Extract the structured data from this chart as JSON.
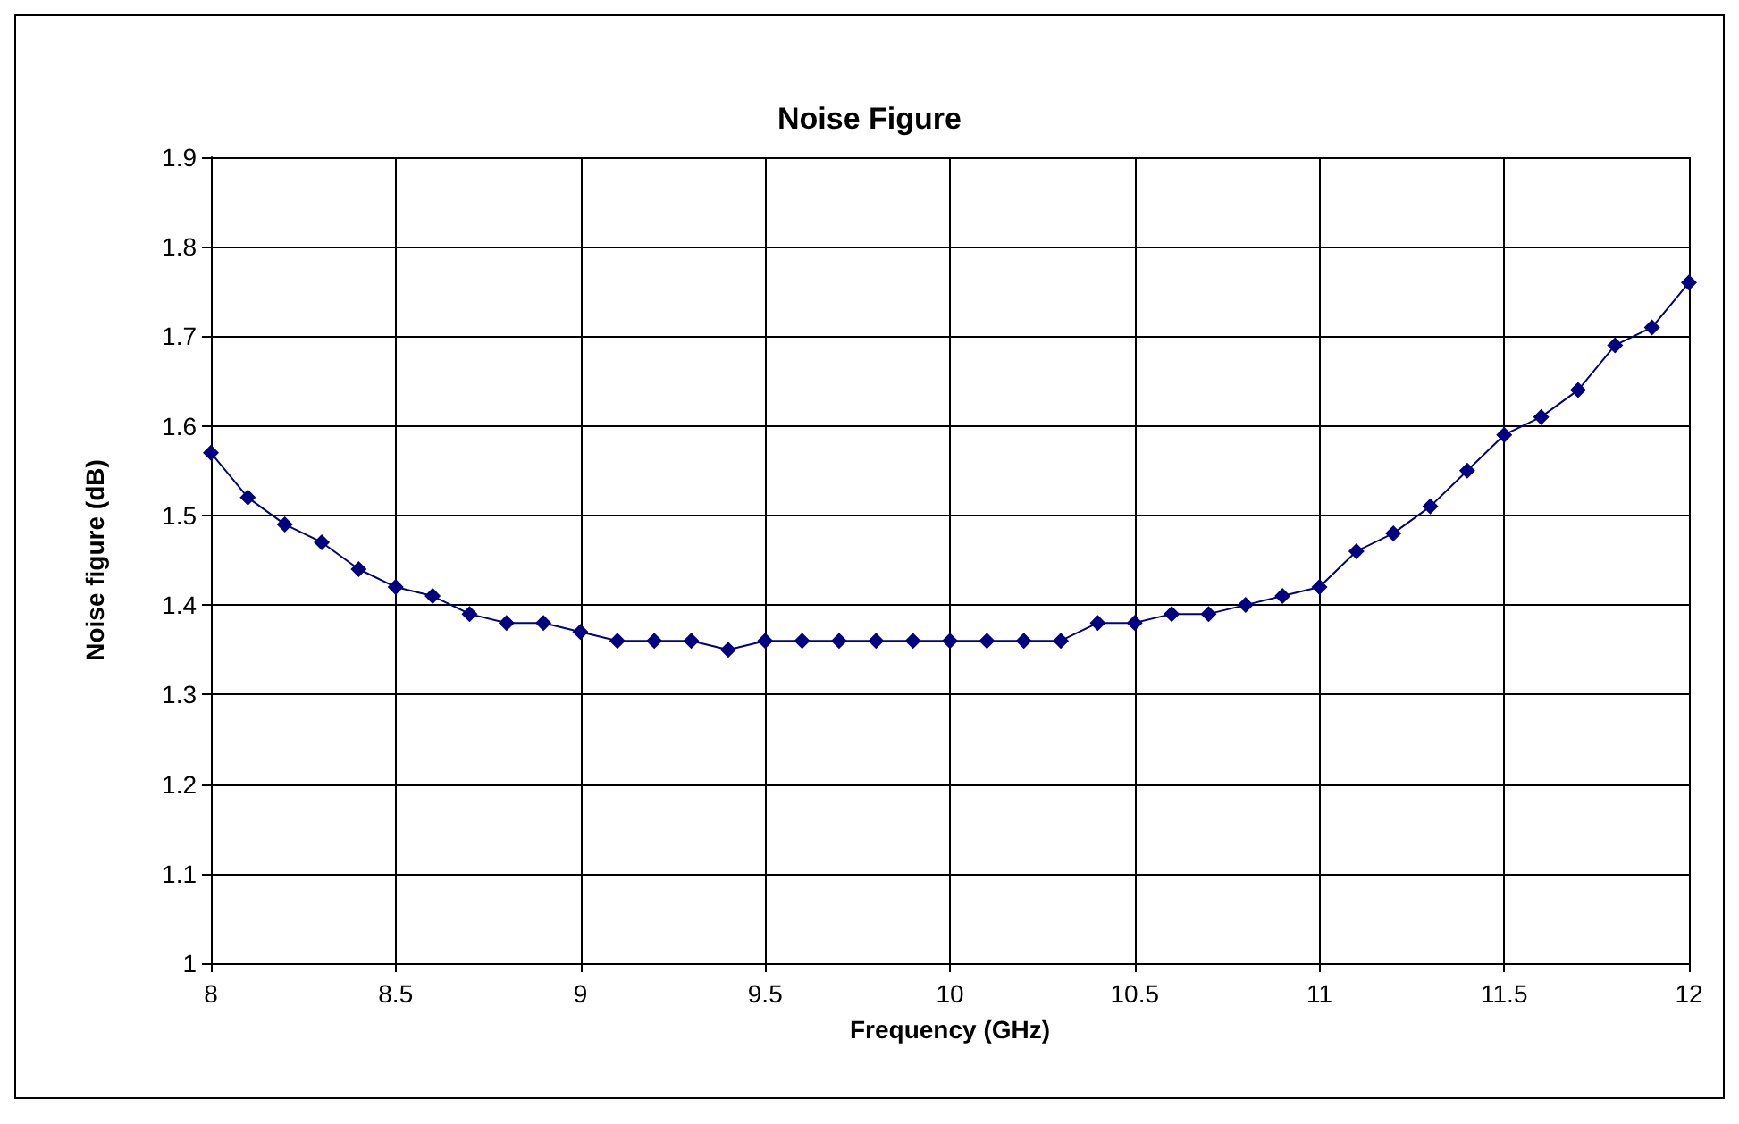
{
  "chart_data": {
    "type": "line",
    "title": "Noise Figure",
    "xlabel": "Frequency (GHz)",
    "ylabel": "Noise figure (dB)",
    "x": [
      8,
      8.1,
      8.2,
      8.3,
      8.4,
      8.5,
      8.6,
      8.7,
      8.8,
      8.9,
      9,
      9.1,
      9.2,
      9.3,
      9.4,
      9.5,
      9.6,
      9.7,
      9.8,
      9.9,
      10,
      10.1,
      10.2,
      10.3,
      10.4,
      10.5,
      10.6,
      10.7,
      10.8,
      10.9,
      11,
      11.1,
      11.2,
      11.3,
      11.4,
      11.5,
      11.6,
      11.7,
      11.8,
      11.9,
      12
    ],
    "series": [
      {
        "color": "#000080",
        "values": [
          1.57,
          1.52,
          1.49,
          1.47,
          1.44,
          1.42,
          1.41,
          1.39,
          1.38,
          1.38,
          1.37,
          1.36,
          1.36,
          1.36,
          1.35,
          1.36,
          1.36,
          1.36,
          1.36,
          1.36,
          1.36,
          1.36,
          1.36,
          1.36,
          1.38,
          1.38,
          1.39,
          1.39,
          1.4,
          1.41,
          1.42,
          1.46,
          1.48,
          1.51,
          1.55,
          1.59,
          1.61,
          1.64,
          1.69,
          1.71,
          1.76
        ]
      }
    ],
    "xlim": [
      8,
      12
    ],
    "xticks": [
      8,
      8.5,
      9,
      9.5,
      10,
      10.5,
      11,
      11.5,
      12
    ],
    "ylim": [
      1,
      1.9
    ],
    "yticks": [
      1,
      1.1,
      1.2,
      1.3,
      1.4,
      1.5,
      1.6,
      1.7,
      1.8,
      1.9
    ],
    "grid": true,
    "marker": "diamond",
    "line_style": "solid"
  }
}
